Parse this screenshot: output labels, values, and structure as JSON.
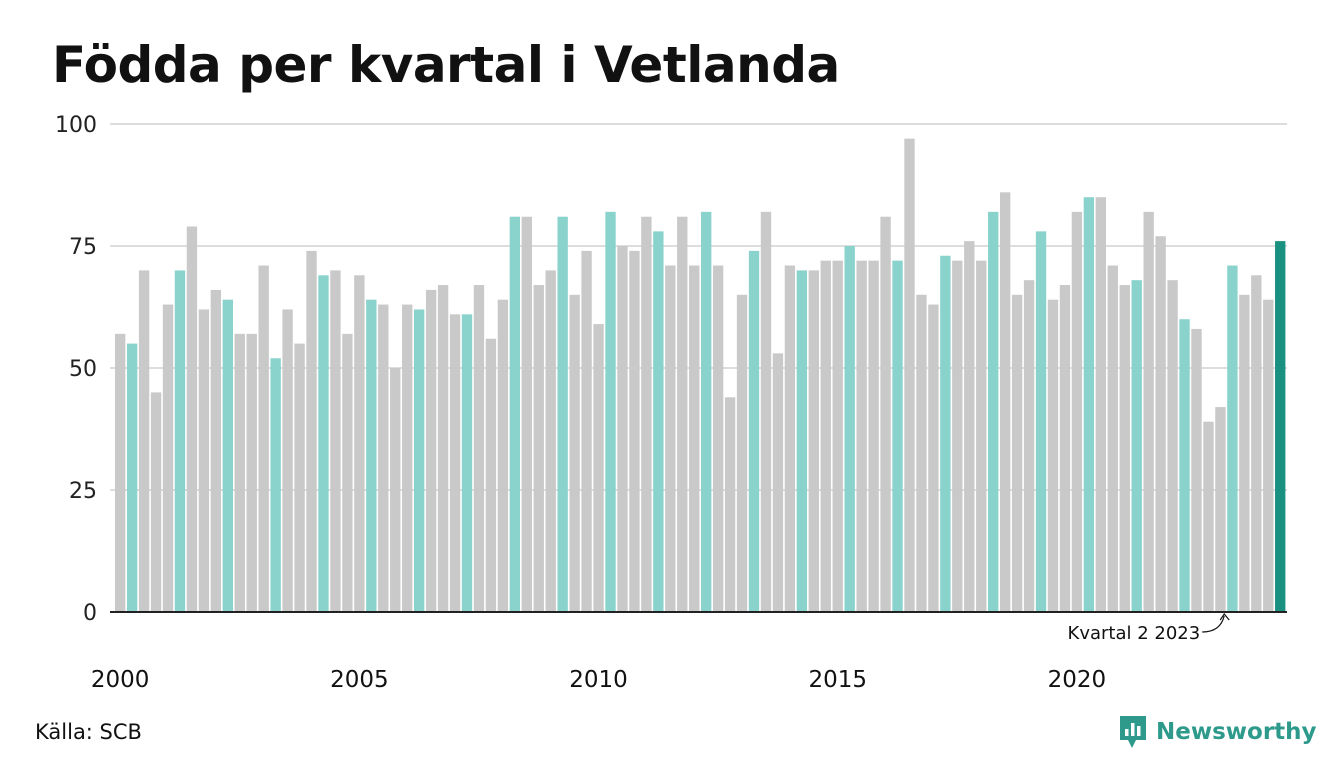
{
  "title": "Födda per kvartal i Vetlanda",
  "source": "Källa: SCB",
  "brand": "Newsworthy",
  "colors": {
    "q2": "#8ad3cd",
    "other": "#c9c9c9",
    "latest": "#1a9080",
    "grid": "#dddddd",
    "axis": "#222222"
  },
  "chart_data": {
    "type": "bar",
    "title": "Födda per kvartal i Vetlanda",
    "ylim": [
      0,
      100
    ],
    "yticks": [
      0,
      25,
      50,
      75,
      100
    ],
    "xtick_labels": [
      "2000",
      "2005",
      "2010",
      "2015",
      "2020"
    ],
    "grid": true,
    "annotation": "Kvartal 2 2023",
    "start_year": 2000,
    "values": [
      57,
      55,
      70,
      45,
      63,
      70,
      79,
      62,
      66,
      64,
      57,
      57,
      71,
      52,
      62,
      55,
      74,
      69,
      70,
      57,
      69,
      64,
      63,
      50,
      63,
      62,
      66,
      67,
      61,
      61,
      67,
      56,
      64,
      81,
      81,
      67,
      70,
      81,
      65,
      74,
      59,
      82,
      75,
      74,
      81,
      78,
      71,
      81,
      71,
      82,
      71,
      44,
      65,
      74,
      82,
      53,
      71,
      70,
      70,
      72,
      72,
      75,
      72,
      72,
      81,
      72,
      97,
      65,
      63,
      73,
      72,
      76,
      72,
      82,
      86,
      65,
      68,
      78,
      64,
      67,
      82,
      85,
      85,
      71,
      67,
      68,
      82,
      77,
      68,
      60,
      58,
      39,
      42,
      71,
      65,
      69,
      64,
      76
    ]
  }
}
